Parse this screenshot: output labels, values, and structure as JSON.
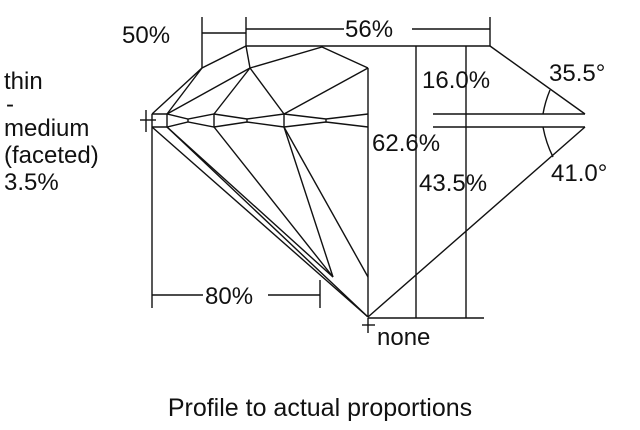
{
  "diagram": {
    "caption": "Profile to actual proportions",
    "girdle": {
      "lines": [
        "thin",
        "-",
        "medium",
        "(faceted)",
        "3.5%"
      ]
    },
    "table_pct": "56%",
    "star_length": "50%",
    "lower_girdle": "80%",
    "crown_height": "16.0%",
    "crown_angle": "35.5°",
    "total_depth": "62.6%",
    "pavilion_depth": "43.5%",
    "pavilion_angle": "41.0°",
    "culet": "none"
  }
}
